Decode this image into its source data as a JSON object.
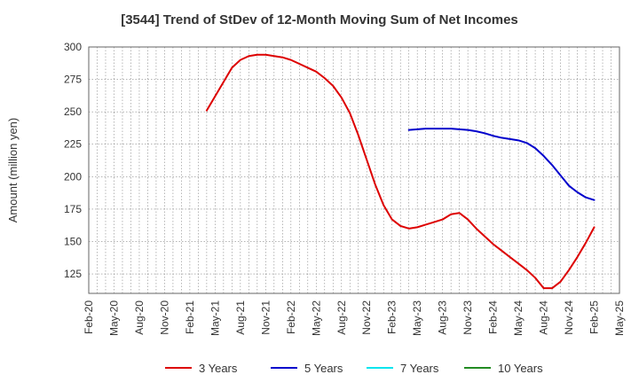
{
  "chart_data": {
    "type": "line",
    "title": "[3544]  Trend of StDev of 12-Month Moving Sum of Net Incomes",
    "xlabel": "",
    "ylabel": "Amount (million yen)",
    "ylim": [
      110,
      300
    ],
    "yticks": [
      125,
      150,
      175,
      200,
      225,
      250,
      275,
      300
    ],
    "xlim": [
      "2020-02",
      "2025-05"
    ],
    "xticks": [
      "Feb-20",
      "May-20",
      "Aug-20",
      "Nov-20",
      "Feb-21",
      "May-21",
      "Aug-21",
      "Nov-21",
      "Feb-22",
      "May-22",
      "Aug-22",
      "Nov-22",
      "Feb-23",
      "May-23",
      "Aug-23",
      "Nov-23",
      "Feb-24",
      "May-24",
      "Aug-24",
      "Nov-24",
      "Feb-25",
      "May-25"
    ],
    "grid": true,
    "legend_position": "bottom",
    "series": [
      {
        "name": "3 Years",
        "color": "#dd0000",
        "points": [
          [
            "2021-04",
            251
          ],
          [
            "2021-05",
            262
          ],
          [
            "2021-06",
            273
          ],
          [
            "2021-07",
            284
          ],
          [
            "2021-08",
            290
          ],
          [
            "2021-09",
            293
          ],
          [
            "2021-10",
            294
          ],
          [
            "2021-11",
            294
          ],
          [
            "2021-12",
            293
          ],
          [
            "2022-01",
            292
          ],
          [
            "2022-02",
            290
          ],
          [
            "2022-03",
            287
          ],
          [
            "2022-04",
            284
          ],
          [
            "2022-05",
            281
          ],
          [
            "2022-06",
            276
          ],
          [
            "2022-07",
            270
          ],
          [
            "2022-08",
            261
          ],
          [
            "2022-09",
            249
          ],
          [
            "2022-10",
            232
          ],
          [
            "2022-11",
            213
          ],
          [
            "2022-12",
            194
          ],
          [
            "2023-01",
            178
          ],
          [
            "2023-02",
            167
          ],
          [
            "2023-03",
            162
          ],
          [
            "2023-04",
            160
          ],
          [
            "2023-05",
            161
          ],
          [
            "2023-06",
            163
          ],
          [
            "2023-07",
            165
          ],
          [
            "2023-08",
            167
          ],
          [
            "2023-09",
            171
          ],
          [
            "2023-10",
            172
          ],
          [
            "2023-11",
            167
          ],
          [
            "2023-12",
            160
          ],
          [
            "2024-01",
            154
          ],
          [
            "2024-02",
            148
          ],
          [
            "2024-03",
            143
          ],
          [
            "2024-04",
            138
          ],
          [
            "2024-05",
            133
          ],
          [
            "2024-06",
            128
          ],
          [
            "2024-07",
            122
          ],
          [
            "2024-08",
            114
          ],
          [
            "2024-09",
            114
          ],
          [
            "2024-10",
            119
          ],
          [
            "2024-11",
            128
          ],
          [
            "2024-12",
            138
          ],
          [
            "2025-01",
            149
          ],
          [
            "2025-02",
            161
          ]
        ]
      },
      {
        "name": "5 Years",
        "color": "#0000cc",
        "points": [
          [
            "2023-04",
            236
          ],
          [
            "2023-05",
            236.5
          ],
          [
            "2023-06",
            237
          ],
          [
            "2023-07",
            237
          ],
          [
            "2023-08",
            237
          ],
          [
            "2023-09",
            237
          ],
          [
            "2023-10",
            236.5
          ],
          [
            "2023-11",
            236
          ],
          [
            "2023-12",
            235
          ],
          [
            "2024-01",
            233.5
          ],
          [
            "2024-02",
            231.5
          ],
          [
            "2024-03",
            230
          ],
          [
            "2024-04",
            229
          ],
          [
            "2024-05",
            228
          ],
          [
            "2024-06",
            226
          ],
          [
            "2024-07",
            222
          ],
          [
            "2024-08",
            216
          ],
          [
            "2024-09",
            209
          ],
          [
            "2024-10",
            201
          ],
          [
            "2024-11",
            193
          ],
          [
            "2024-12",
            188
          ],
          [
            "2025-01",
            184
          ],
          [
            "2025-02",
            182
          ]
        ]
      },
      {
        "name": "7 Years",
        "color": "#00e5ee",
        "points": []
      },
      {
        "name": "10 Years",
        "color": "#228b22",
        "points": []
      }
    ]
  }
}
